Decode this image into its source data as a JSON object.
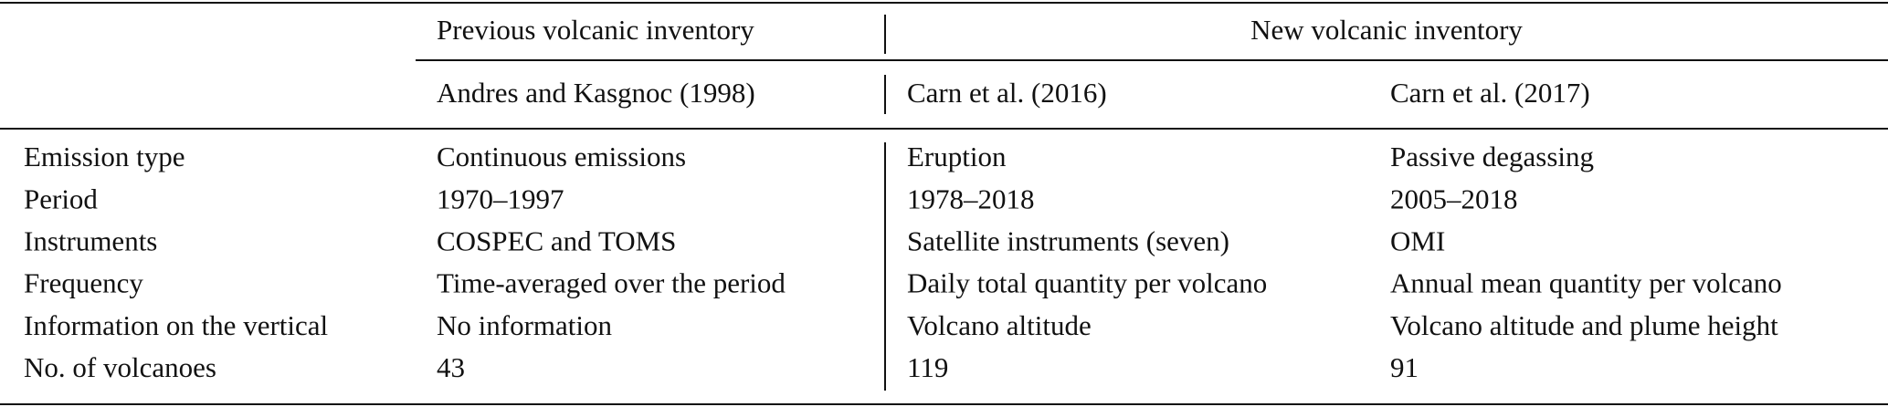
{
  "table": {
    "groups": [
      "Previous volcanic inventory",
      "New volcanic inventory"
    ],
    "columns": [
      "Andres and Kasgnoc (1998)",
      "Carn et al. (2016)",
      "Carn et al. (2017)"
    ],
    "rows": [
      [
        "Emission type",
        "Continuous emissions",
        "Eruption",
        "Passive degassing"
      ],
      [
        "Period",
        "1970–1997",
        "1978–2018",
        "2005–2018"
      ],
      [
        "Instruments",
        "COSPEC and TOMS",
        "Satellite instruments (seven)",
        "OMI"
      ],
      [
        "Frequency",
        "Time-averaged over the period",
        "Daily total quantity per volcano",
        "Annual mean quantity per volcano"
      ],
      [
        "Information on the vertical",
        "No information",
        "Volcano altitude",
        "Volcano altitude and plume height"
      ],
      [
        "No. of volcanoes",
        "43",
        "119",
        "91"
      ]
    ]
  }
}
